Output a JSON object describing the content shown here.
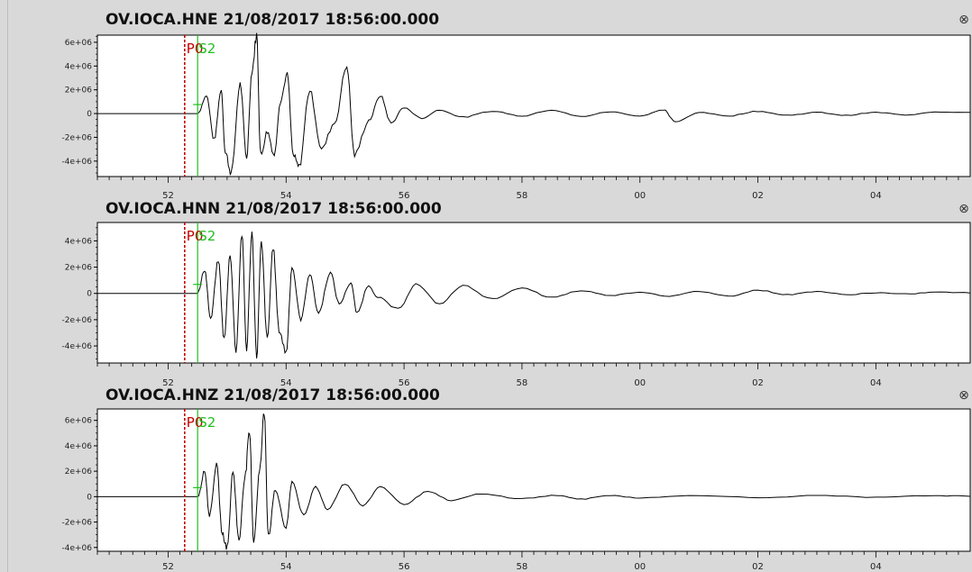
{
  "colors": {
    "background": "#d9d9d9",
    "plot_background": "#ffffff",
    "trace": "#000000",
    "p_pick": "#c00000",
    "s_pick": "#1fbf1f"
  },
  "picks": {
    "p_label": "P0",
    "s_label": "S2",
    "p_time_sec": 52.28,
    "s_time_sec": 52.5
  },
  "x_axis": {
    "range_sec": [
      50.8,
      65.6
    ],
    "tick_labels": [
      {
        "text": "52",
        "sec": 52
      },
      {
        "text": "54",
        "sec": 54
      },
      {
        "text": "56",
        "sec": 56
      },
      {
        "text": "58",
        "sec": 58
      },
      {
        "text": "00",
        "sec": 60
      },
      {
        "text": "02",
        "sec": 62
      },
      {
        "text": "04",
        "sec": 64
      }
    ]
  },
  "traces": [
    {
      "title": "OV.IOCA.HNE 21/08/2017 18:56:00.000",
      "close_icon": "close-circle-icon",
      "y_range": [
        -5300000,
        6600000
      ],
      "y_ticks": [
        {
          "text": "6e+06",
          "value": 6000000
        },
        {
          "text": "4e+06",
          "value": 4000000
        },
        {
          "text": "2e+06",
          "value": 2000000
        },
        {
          "text": "0",
          "value": 0
        },
        {
          "text": "-2e+06",
          "value": -2000000
        },
        {
          "text": "-4e+06",
          "value": -4000000
        }
      ],
      "peaks": [
        [
          52.5,
          0
        ],
        [
          52.65,
          1500000
        ],
        [
          52.78,
          -2200000
        ],
        [
          52.9,
          2000000
        ],
        [
          52.97,
          -3300000
        ],
        [
          53.07,
          -5000000
        ],
        [
          53.22,
          2500000
        ],
        [
          53.33,
          -3700000
        ],
        [
          53.42,
          3500000
        ],
        [
          53.5,
          6600000
        ],
        [
          53.57,
          -3500000
        ],
        [
          53.68,
          -1500000
        ],
        [
          53.8,
          -3500000
        ],
        [
          53.9,
          1000000
        ],
        [
          54.02,
          3300000
        ],
        [
          54.12,
          -3500000
        ],
        [
          54.22,
          -4500000
        ],
        [
          54.4,
          2000000
        ],
        [
          54.6,
          -3000000
        ],
        [
          54.82,
          -800000
        ],
        [
          55.03,
          4000000
        ],
        [
          55.16,
          -3500000
        ],
        [
          55.4,
          -600000
        ],
        [
          55.6,
          1500000
        ],
        [
          55.78,
          -800000
        ],
        [
          56.0,
          500000
        ],
        [
          56.3,
          -400000
        ],
        [
          56.6,
          300000
        ],
        [
          57.0,
          -300000
        ],
        [
          57.5,
          200000
        ],
        [
          58.0,
          -200000
        ],
        [
          58.5,
          300000
        ],
        [
          59.0,
          -250000
        ],
        [
          59.5,
          150000
        ],
        [
          60.0,
          -200000
        ],
        [
          60.4,
          300000
        ],
        [
          60.6,
          -700000
        ],
        [
          61.0,
          100000
        ],
        [
          61.5,
          -200000
        ],
        [
          62.0,
          200000
        ],
        [
          62.5,
          -150000
        ],
        [
          63.0,
          100000
        ],
        [
          63.5,
          -150000
        ],
        [
          64.0,
          100000
        ],
        [
          64.5,
          -120000
        ],
        [
          65.0,
          150000
        ],
        [
          65.6,
          100000
        ]
      ]
    },
    {
      "title": "OV.IOCA.HNN 21/08/2017 18:56:00.000",
      "close_icon": "close-circle-icon",
      "y_range": [
        -5300000,
        5400000
      ],
      "y_ticks": [
        {
          "text": "4e+06",
          "value": 4000000
        },
        {
          "text": "2e+06",
          "value": 2000000
        },
        {
          "text": "0",
          "value": 0
        },
        {
          "text": "-2e+06",
          "value": -2000000
        },
        {
          "text": "-4e+06",
          "value": -4000000
        }
      ],
      "peaks": [
        [
          52.5,
          0
        ],
        [
          52.62,
          1800000
        ],
        [
          52.72,
          -2000000
        ],
        [
          52.85,
          2500000
        ],
        [
          52.95,
          -3500000
        ],
        [
          53.05,
          3000000
        ],
        [
          53.15,
          -4300000
        ],
        [
          53.25,
          4500000
        ],
        [
          53.33,
          -4200000
        ],
        [
          53.42,
          4600000
        ],
        [
          53.5,
          -4800000
        ],
        [
          53.58,
          3800000
        ],
        [
          53.68,
          -3500000
        ],
        [
          53.78,
          3500000
        ],
        [
          53.88,
          -2800000
        ],
        [
          54.0,
          -4500000
        ],
        [
          54.1,
          2000000
        ],
        [
          54.25,
          -2000000
        ],
        [
          54.4,
          1500000
        ],
        [
          54.55,
          -1500000
        ],
        [
          54.75,
          1600000
        ],
        [
          54.9,
          -800000
        ],
        [
          55.1,
          800000
        ],
        [
          55.2,
          -1500000
        ],
        [
          55.4,
          600000
        ],
        [
          55.55,
          -300000
        ],
        [
          55.9,
          -1200000
        ],
        [
          56.2,
          700000
        ],
        [
          56.6,
          -800000
        ],
        [
          57.0,
          600000
        ],
        [
          57.5,
          -400000
        ],
        [
          58.0,
          400000
        ],
        [
          58.5,
          -300000
        ],
        [
          59.0,
          200000
        ],
        [
          59.5,
          -150000
        ],
        [
          60.0,
          100000
        ],
        [
          60.5,
          -200000
        ],
        [
          61.0,
          150000
        ],
        [
          61.5,
          -200000
        ],
        [
          62.0,
          250000
        ],
        [
          62.5,
          -100000
        ],
        [
          63.0,
          150000
        ],
        [
          63.5,
          -100000
        ],
        [
          64.0,
          50000
        ],
        [
          64.5,
          -50000
        ],
        [
          65.0,
          100000
        ],
        [
          65.6,
          50000
        ]
      ]
    },
    {
      "title": "OV.IOCA.HNZ 21/08/2017 18:56:00.000",
      "close_icon": "close-circle-icon",
      "y_range": [
        -4300000,
        6900000
      ],
      "y_ticks": [
        {
          "text": "6e+06",
          "value": 6000000
        },
        {
          "text": "4e+06",
          "value": 4000000
        },
        {
          "text": "2e+06",
          "value": 2000000
        },
        {
          "text": "0",
          "value": 0
        },
        {
          "text": "-2e+06",
          "value": -2000000
        },
        {
          "text": "-4e+06",
          "value": -4000000
        }
      ],
      "peaks": [
        [
          52.5,
          0
        ],
        [
          52.62,
          2000000
        ],
        [
          52.7,
          -1500000
        ],
        [
          52.82,
          2500000
        ],
        [
          52.92,
          -3000000
        ],
        [
          53.0,
          -4000000
        ],
        [
          53.1,
          2000000
        ],
        [
          53.2,
          -3500000
        ],
        [
          53.3,
          1500000
        ],
        [
          53.38,
          5000000
        ],
        [
          53.45,
          -3500000
        ],
        [
          53.55,
          2000000
        ],
        [
          53.63,
          6600000
        ],
        [
          53.7,
          -3000000
        ],
        [
          53.82,
          500000
        ],
        [
          54.0,
          -2500000
        ],
        [
          54.1,
          1200000
        ],
        [
          54.3,
          -1500000
        ],
        [
          54.5,
          800000
        ],
        [
          54.7,
          -1000000
        ],
        [
          55.0,
          1000000
        ],
        [
          55.3,
          -700000
        ],
        [
          55.6,
          800000
        ],
        [
          56.0,
          -600000
        ],
        [
          56.4,
          400000
        ],
        [
          56.8,
          -300000
        ],
        [
          57.3,
          200000
        ],
        [
          58.0,
          -150000
        ],
        [
          58.6,
          100000
        ],
        [
          59.0,
          -200000
        ],
        [
          59.5,
          100000
        ],
        [
          60.0,
          -100000
        ],
        [
          61.0,
          100000
        ],
        [
          62.0,
          -80000
        ],
        [
          63.0,
          80000
        ],
        [
          64.0,
          -60000
        ],
        [
          65.0,
          80000
        ],
        [
          65.6,
          50000
        ]
      ]
    }
  ]
}
